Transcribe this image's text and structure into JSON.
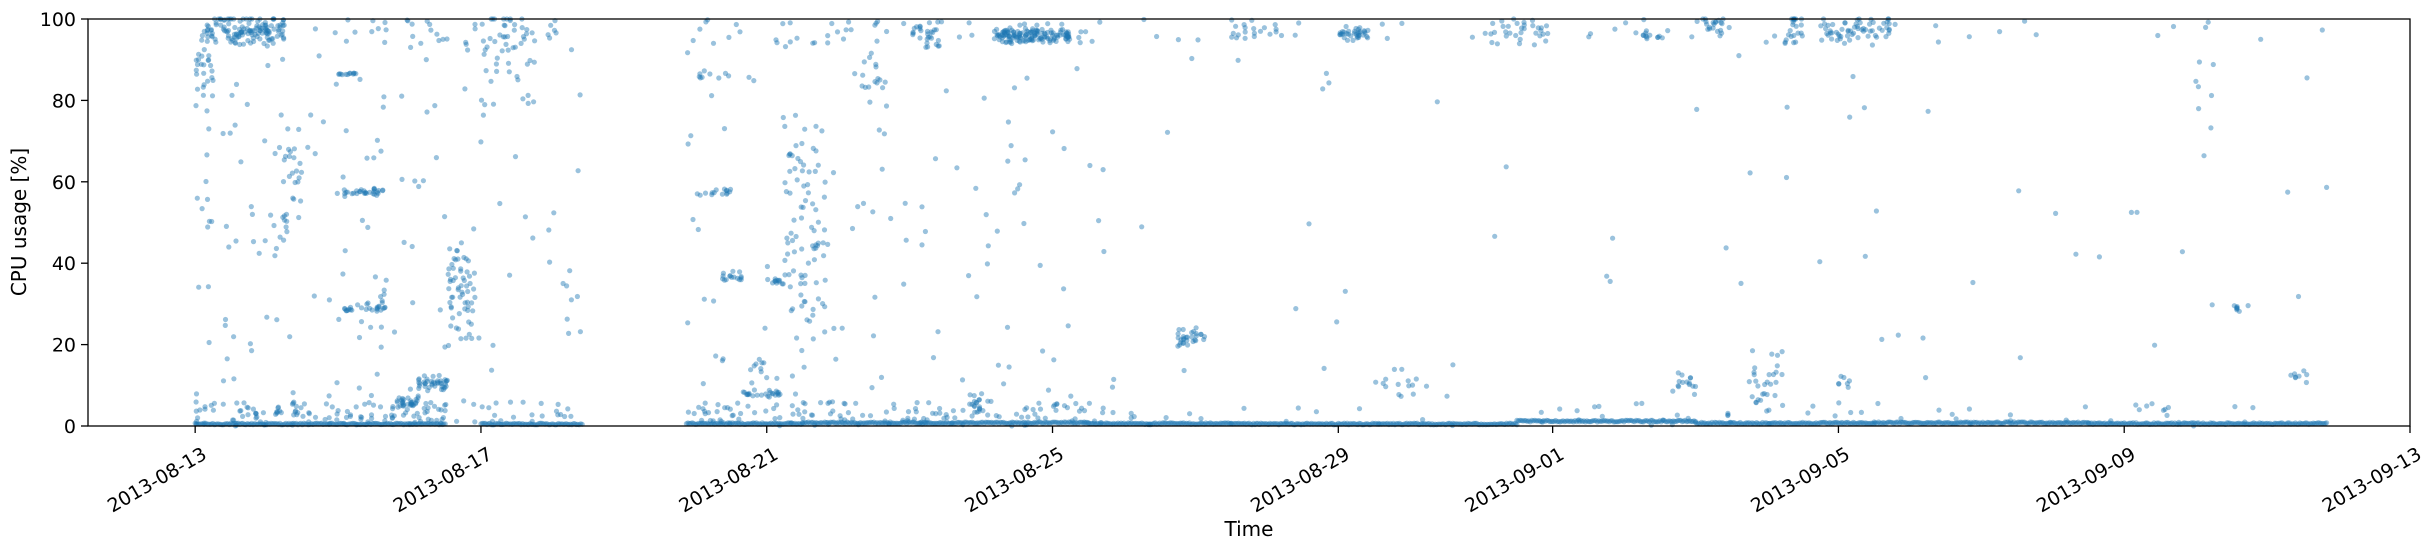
{
  "chart_data": {
    "type": "scatter",
    "title": "",
    "xlabel": "Time",
    "ylabel": "CPU usage [%]",
    "xlim": [
      "2013-08-11T12:00",
      "2013-09-13T00:00"
    ],
    "ylim": [
      0,
      100
    ],
    "x_ticks": [
      "2013-08-13",
      "2013-08-17",
      "2013-08-21",
      "2013-08-25",
      "2013-08-29",
      "2013-09-01",
      "2013-09-05",
      "2013-09-09",
      "2013-09-13"
    ],
    "y_ticks": [
      0,
      20,
      40,
      60,
      80,
      100
    ],
    "grid": false,
    "legend": null,
    "marker_color": "#1f77b4",
    "marker_alpha": 0.45,
    "data_span": [
      "2013-08-12T23:00",
      "2013-09-11T20:00"
    ],
    "gaps": [
      [
        "2013-08-18T10:00",
        "2013-08-19T21:00"
      ]
    ],
    "baseline_levels": [
      {
        "from": "2013-08-13T00:00",
        "to": "2013-08-16T12:00",
        "value": 0.5
      },
      {
        "from": "2013-08-17T00:00",
        "to": "2013-08-18T10:00",
        "value": 0.5
      },
      {
        "from": "2013-08-19T21:00",
        "to": "2013-08-21T12:00",
        "value": 0.6
      },
      {
        "from": "2013-08-21T12:00",
        "to": "2013-08-25T12:00",
        "value": 0.8
      },
      {
        "from": "2013-08-25T12:00",
        "to": "2013-08-27T12:00",
        "value": 0.6
      },
      {
        "from": "2013-08-27T12:00",
        "to": "2013-08-31T12:00",
        "value": 0.5
      },
      {
        "from": "2013-08-31T12:00",
        "to": "2013-09-03T00:00",
        "value": 1.2
      },
      {
        "from": "2013-09-03T00:00",
        "to": "2013-09-05T12:00",
        "value": 0.7
      },
      {
        "from": "2013-09-05T12:00",
        "to": "2013-09-08T12:00",
        "value": 0.8
      },
      {
        "from": "2013-09-08T12:00",
        "to": "2013-09-11T20:00",
        "value": 0.6
      }
    ],
    "clusters": [
      {
        "from": "2013-08-13T04:00",
        "to": "2013-08-14T06:00",
        "y": 97,
        "spread": 2,
        "count": 130
      },
      {
        "from": "2013-08-13T00:00",
        "to": "2013-08-13T06:00",
        "y": 85,
        "spread": 5,
        "count": 25
      },
      {
        "from": "2013-08-14T00:00",
        "to": "2013-08-14T12:00",
        "y": 62,
        "spread": 8,
        "count": 25
      },
      {
        "from": "2013-08-15T00:00",
        "to": "2013-08-15T06:00",
        "y": 86.5,
        "spread": 0.3,
        "count": 12
      },
      {
        "from": "2013-08-15T02:00",
        "to": "2013-08-15T16:00",
        "y": 57.5,
        "spread": 0.4,
        "count": 30
      },
      {
        "from": "2013-08-15T02:00",
        "to": "2013-08-15T16:00",
        "y": 29,
        "spread": 0.4,
        "count": 25
      },
      {
        "from": "2013-08-15T18:00",
        "to": "2013-08-16T03:00",
        "y": 6,
        "spread": 0.6,
        "count": 30
      },
      {
        "from": "2013-08-16T03:00",
        "to": "2013-08-16T13:00",
        "y": 10.5,
        "spread": 1,
        "count": 40
      },
      {
        "from": "2013-08-16T13:00",
        "to": "2013-08-16T22:00",
        "y": 33,
        "spread": 7,
        "count": 60
      },
      {
        "from": "2013-08-17T00:00",
        "to": "2013-08-17T18:00",
        "y": 92,
        "spread": 7,
        "count": 50
      },
      {
        "from": "2013-08-20T00:00",
        "to": "2013-08-20T12:00",
        "y": 86,
        "spread": 0.4,
        "count": 8
      },
      {
        "from": "2013-08-20T00:00",
        "to": "2013-08-20T12:00",
        "y": 57.5,
        "spread": 0.4,
        "count": 14
      },
      {
        "from": "2013-08-20T08:00",
        "to": "2013-08-20T16:00",
        "y": 36.5,
        "spread": 0.5,
        "count": 14
      },
      {
        "from": "2013-08-20T16:00",
        "to": "2013-08-21T06:00",
        "y": 8,
        "spread": 0.5,
        "count": 25
      },
      {
        "from": "2013-08-20T18:00",
        "to": "2013-08-21T00:00",
        "y": 14,
        "spread": 1.5,
        "count": 10
      },
      {
        "from": "2013-08-21T00:00",
        "to": "2013-08-21T06:00",
        "y": 35.5,
        "spread": 0.5,
        "count": 12
      },
      {
        "from": "2013-08-21T06:00",
        "to": "2013-08-21T20:00",
        "y": 50,
        "spread": 14,
        "count": 80
      },
      {
        "from": "2013-08-22T08:00",
        "to": "2013-08-22T16:00",
        "y": 85,
        "spread": 3,
        "count": 15
      },
      {
        "from": "2013-08-23T00:00",
        "to": "2013-08-23T10:00",
        "y": 96,
        "spread": 2,
        "count": 25
      },
      {
        "from": "2013-08-23T20:00",
        "to": "2013-08-24T04:00",
        "y": 5,
        "spread": 1.2,
        "count": 18
      },
      {
        "from": "2013-08-24T04:00",
        "to": "2013-08-25T06:00",
        "y": 96,
        "spread": 1,
        "count": 140
      },
      {
        "from": "2013-08-26T18:00",
        "to": "2013-08-27T04:00",
        "y": 21.5,
        "spread": 1.2,
        "count": 30
      },
      {
        "from": "2013-08-27T12:00",
        "to": "2013-08-28T06:00",
        "y": 97,
        "spread": 1.5,
        "count": 20
      },
      {
        "from": "2013-08-29T00:00",
        "to": "2013-08-29T10:00",
        "y": 96.5,
        "spread": 0.7,
        "count": 35
      },
      {
        "from": "2013-08-29T12:00",
        "to": "2013-08-30T06:00",
        "y": 11,
        "spread": 2,
        "count": 15
      },
      {
        "from": "2013-08-31T00:00",
        "to": "2013-09-01T00:00",
        "y": 97,
        "spread": 1.5,
        "count": 30
      },
      {
        "from": "2013-09-02T06:00",
        "to": "2013-09-02T12:00",
        "y": 96,
        "spread": 0.5,
        "count": 10
      },
      {
        "from": "2013-09-02T18:00",
        "to": "2013-09-03T00:00",
        "y": 11,
        "spread": 2,
        "count": 14
      },
      {
        "from": "2013-09-03T00:00",
        "to": "2013-09-03T12:00",
        "y": 98,
        "spread": 1.5,
        "count": 20
      },
      {
        "from": "2013-09-03T18:00",
        "to": "2013-09-04T06:00",
        "y": 12,
        "spread": 4,
        "count": 30
      },
      {
        "from": "2013-09-04T06:00",
        "to": "2013-09-04T12:00",
        "y": 97.5,
        "spread": 1.5,
        "count": 22
      },
      {
        "from": "2013-09-04T18:00",
        "to": "2013-09-05T06:00",
        "y": 97,
        "spread": 1.5,
        "count": 30
      },
      {
        "from": "2013-09-05T06:00",
        "to": "2013-09-05T18:00",
        "y": 97.5,
        "spread": 1.5,
        "count": 30
      },
      {
        "from": "2013-09-05T00:00",
        "to": "2013-09-05T04:00",
        "y": 10,
        "spread": 2,
        "count": 8
      },
      {
        "from": "2013-09-10T12:00",
        "to": "2013-09-10T18:00",
        "y": 29,
        "spread": 0.5,
        "count": 8
      },
      {
        "from": "2013-09-11T06:00",
        "to": "2013-09-11T14:00",
        "y": 12,
        "spread": 1,
        "count": 8
      },
      {
        "from": "2013-09-10T00:00",
        "to": "2013-09-10T06:00",
        "y": 80,
        "spread": 10,
        "count": 10
      }
    ],
    "background_scatter": [
      {
        "from": "2013-08-13T00:00",
        "to": "2013-08-16T12:00",
        "density": 3.2
      },
      {
        "from": "2013-08-16T12:00",
        "to": "2013-08-18T10:00",
        "density": 1.5
      },
      {
        "from": "2013-08-19T21:00",
        "to": "2013-08-22T00:00",
        "density": 2.2
      },
      {
        "from": "2013-08-22T00:00",
        "to": "2013-08-25T18:00",
        "density": 2.0
      },
      {
        "from": "2013-08-25T18:00",
        "to": "2013-08-28T00:00",
        "density": 0.4
      },
      {
        "from": "2013-08-28T00:00",
        "to": "2013-08-31T00:00",
        "density": 0.35
      },
      {
        "from": "2013-08-31T00:00",
        "to": "2013-09-06T12:00",
        "density": 0.5
      },
      {
        "from": "2013-09-06T12:00",
        "to": "2013-09-11T20:00",
        "density": 0.35
      }
    ]
  }
}
